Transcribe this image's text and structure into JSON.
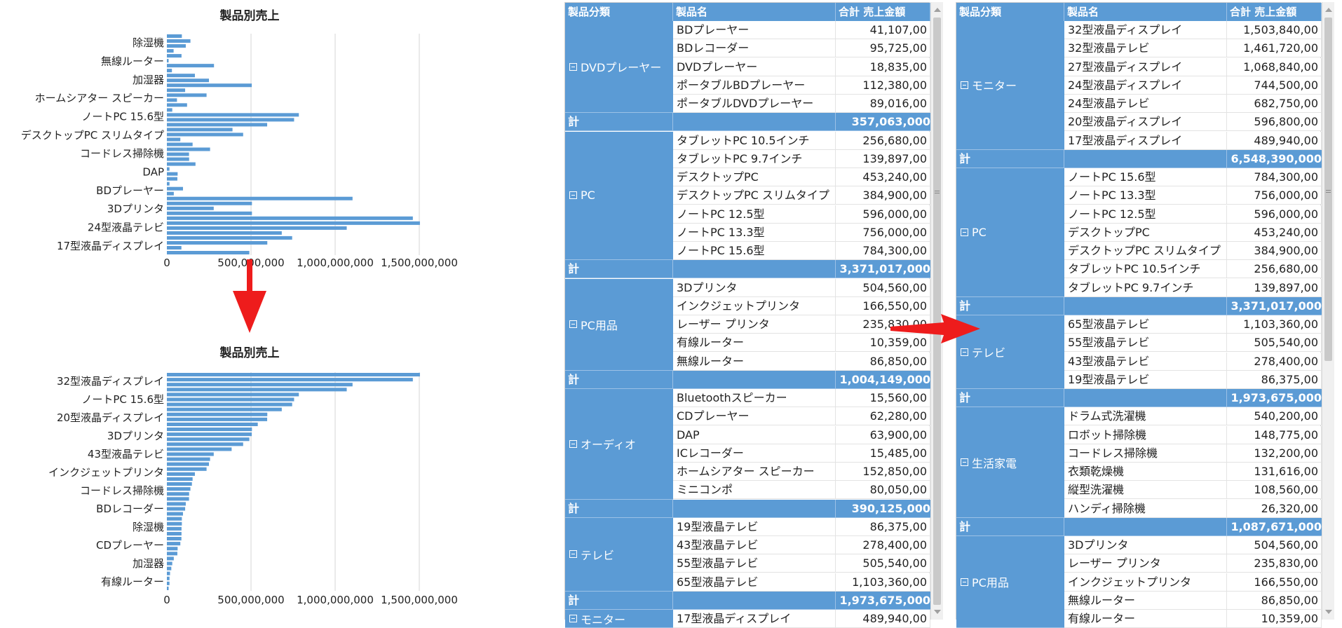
{
  "chart_data": [
    {
      "type": "bar",
      "orientation": "horizontal",
      "title": "製品別売上",
      "xlim": [
        0,
        1750000000
      ],
      "x_ticks": [
        "0",
        "500,000,000",
        "1,000,000,000",
        "1,500,000,000"
      ],
      "category_labels": [
        "除湿機",
        "無線ルーター",
        "加湿器",
        "ホームシアター スピーカー",
        "ノートPC 15.6型",
        "デスクトップPC スリムタイプ",
        "コードレス掃除機",
        "DAP",
        "BDプレーヤー",
        "3Dプリンタ",
        "24型液晶テレビ",
        "17型液晶ディスプレイ"
      ],
      "values": [
        89016000,
        140000000,
        112380000,
        40000000,
        87000000,
        10359000,
        280000000,
        30000000,
        166550000,
        250000000,
        504560000,
        108560000,
        235830000,
        60000000,
        120000000,
        32000000,
        784300000,
        756000000,
        596000000,
        390000000,
        453240000,
        80000000,
        152850000,
        256680000,
        131616000,
        132200000,
        170000000,
        15485000,
        63900000,
        62280000,
        15560000,
        95725000,
        41107000,
        1103360000,
        505540000,
        278400000,
        505540000,
        1461720000,
        1503840000,
        1068840000,
        682750000,
        744500000,
        596800000,
        86375000,
        489940000
      ]
    },
    {
      "type": "bar",
      "orientation": "horizontal",
      "title": "製品別売上",
      "xlim": [
        0,
        1750000000
      ],
      "x_ticks": [
        "0",
        "500,000,000",
        "1,000,000,000",
        "1,500,000,000"
      ],
      "category_labels": [
        "32型液晶ディスプレイ",
        "ノートPC 15.6型",
        "20型液晶ディスプレイ",
        "3Dプリンタ",
        "43型液晶テレビ",
        "インクジェットプリンタ",
        "コードレス掃除機",
        "BDレコーダー",
        "除湿機",
        "CDプレーヤー",
        "加湿器",
        "有線ルーター"
      ],
      "values": [
        1503840000,
        1461720000,
        1103360000,
        1068840000,
        784300000,
        756000000,
        744500000,
        682750000,
        596800000,
        596000000,
        540200000,
        505540000,
        504560000,
        489940000,
        453240000,
        384900000,
        278400000,
        256680000,
        250000000,
        235830000,
        166550000,
        152850000,
        148775000,
        139897000,
        132200000,
        131616000,
        112380000,
        108560000,
        95725000,
        89016000,
        89016000,
        87000000,
        86850000,
        86375000,
        80050000,
        63900000,
        62280000,
        41107000,
        32000000,
        26320000,
        18835000,
        15560000,
        15485000,
        10359000
      ]
    }
  ],
  "table_left": {
    "headers": [
      "製品分類",
      "製品名",
      "合計 売上金額"
    ],
    "sum_label": "計",
    "groups": [
      {
        "name": "DVDプレーヤー",
        "rows": [
          [
            "BDプレーヤー",
            "41,107,00"
          ],
          [
            "BDレコーダー",
            "95,725,00"
          ],
          [
            "DVDプレーヤー",
            "18,835,00"
          ],
          [
            "ポータブルBDプレーヤー",
            "112,380,00"
          ],
          [
            "ポータブルDVDプレーヤー",
            "89,016,00"
          ]
        ],
        "total": "357,063,000"
      },
      {
        "name": "PC",
        "rows": [
          [
            "タブレットPC 10.5インチ",
            "256,680,00"
          ],
          [
            "タブレットPC 9.7インチ",
            "139,897,00"
          ],
          [
            "デスクトップPC",
            "453,240,00"
          ],
          [
            "デスクトップPC スリムタイプ",
            "384,900,00"
          ],
          [
            "ノートPC 12.5型",
            "596,000,00"
          ],
          [
            "ノートPC 13.3型",
            "756,000,00"
          ],
          [
            "ノートPC 15.6型",
            "784,300,00"
          ]
        ],
        "total": "3,371,017,000"
      },
      {
        "name": "PC用品",
        "rows": [
          [
            "3Dプリンタ",
            "504,560,00"
          ],
          [
            "インクジェットプリンタ",
            "166,550,00"
          ],
          [
            "レーザー プリンタ",
            "235,830,00"
          ],
          [
            "有線ルーター",
            "10,359,00"
          ],
          [
            "無線ルーター",
            "86,850,00"
          ]
        ],
        "total": "1,004,149,000"
      },
      {
        "name": "オーディオ",
        "rows": [
          [
            "Bluetoothスピーカー",
            "15,560,00"
          ],
          [
            "CDプレーヤー",
            "62,280,00"
          ],
          [
            "DAP",
            "63,900,00"
          ],
          [
            "ICレコーダー",
            "15,485,00"
          ],
          [
            "ホームシアター スピーカー",
            "152,850,00"
          ],
          [
            "ミニコンポ",
            "80,050,00"
          ]
        ],
        "total": "390,125,000"
      },
      {
        "name": "テレビ",
        "rows": [
          [
            "19型液晶テレビ",
            "86,375,00"
          ],
          [
            "43型液晶テレビ",
            "278,400,00"
          ],
          [
            "55型液晶テレビ",
            "505,540,00"
          ],
          [
            "65型液晶テレビ",
            "1,103,360,00"
          ]
        ],
        "total": "1,973,675,000"
      },
      {
        "name": "モニター",
        "rows": [
          [
            "17型液晶ディスプレイ",
            "489,940,00"
          ]
        ],
        "total": ""
      }
    ]
  },
  "table_right": {
    "headers": [
      "製品分類",
      "製品名",
      "合計 売上金額"
    ],
    "sum_label": "計",
    "groups": [
      {
        "name": "モニター",
        "rows": [
          [
            "32型液晶ディスプレイ",
            "1,503,840,00"
          ],
          [
            "32型液晶テレビ",
            "1,461,720,00"
          ],
          [
            "27型液晶ディスプレイ",
            "1,068,840,00"
          ],
          [
            "24型液晶ディスプレイ",
            "744,500,00"
          ],
          [
            "24型液晶テレビ",
            "682,750,00"
          ],
          [
            "20型液晶ディスプレイ",
            "596,800,00"
          ],
          [
            "17型液晶ディスプレイ",
            "489,940,00"
          ]
        ],
        "total": "6,548,390,000"
      },
      {
        "name": "PC",
        "rows": [
          [
            "ノートPC 15.6型",
            "784,300,00"
          ],
          [
            "ノートPC 13.3型",
            "756,000,00"
          ],
          [
            "ノートPC 12.5型",
            "596,000,00"
          ],
          [
            "デスクトップPC",
            "453,240,00"
          ],
          [
            "デスクトップPC スリムタイプ",
            "384,900,00"
          ],
          [
            "タブレットPC 10.5インチ",
            "256,680,00"
          ],
          [
            "タブレットPC 9.7インチ",
            "139,897,00"
          ]
        ],
        "total": "3,371,017,000"
      },
      {
        "name": "テレビ",
        "rows": [
          [
            "65型液晶テレビ",
            "1,103,360,00"
          ],
          [
            "55型液晶テレビ",
            "505,540,00"
          ],
          [
            "43型液晶テレビ",
            "278,400,00"
          ],
          [
            "19型液晶テレビ",
            "86,375,00"
          ]
        ],
        "total": "1,973,675,000"
      },
      {
        "name": "生活家電",
        "rows": [
          [
            "ドラム式洗濯機",
            "540,200,00"
          ],
          [
            "ロボット掃除機",
            "148,775,00"
          ],
          [
            "コードレス掃除機",
            "132,200,00"
          ],
          [
            "衣類乾燥機",
            "131,616,00"
          ],
          [
            "縦型洗濯機",
            "108,560,00"
          ],
          [
            "ハンディ掃除機",
            "26,320,00"
          ]
        ],
        "total": "1,087,671,000"
      },
      {
        "name": "PC用品",
        "rows": [
          [
            "3Dプリンタ",
            "504,560,00"
          ],
          [
            "レーザー プリンタ",
            "235,830,00"
          ],
          [
            "インクジェットプリンタ",
            "166,550,00"
          ],
          [
            "無線ルーター",
            "86,850,00"
          ],
          [
            "有線ルーター",
            "10,359,00"
          ]
        ],
        "total": ""
      }
    ]
  },
  "colors": {
    "bar": "#5b9bd5",
    "header": "#5b9bd5",
    "arrow": "#ee1c1c"
  }
}
